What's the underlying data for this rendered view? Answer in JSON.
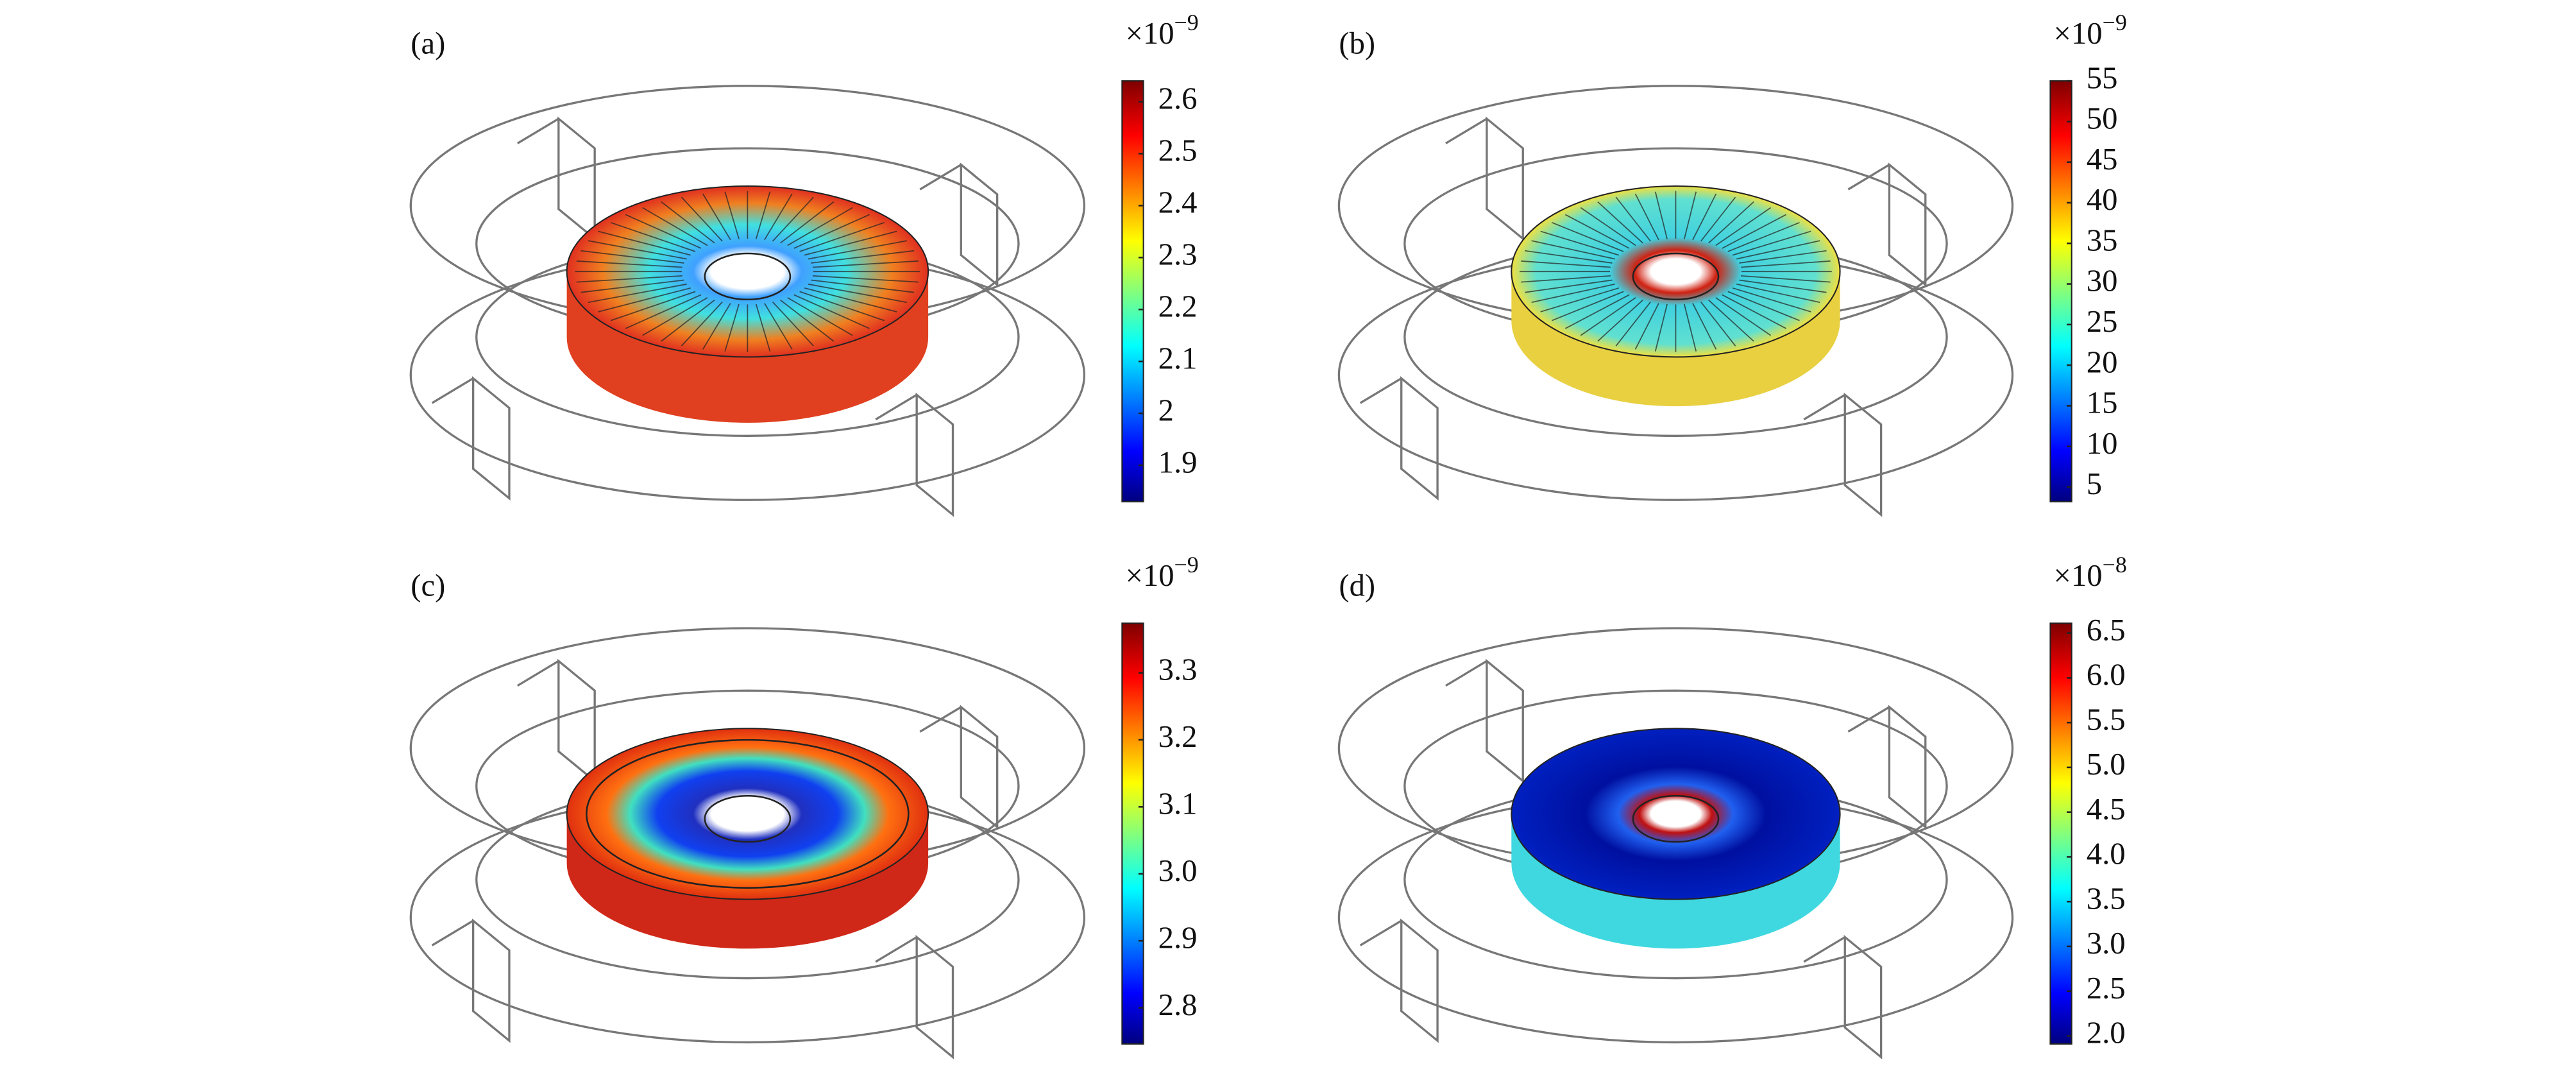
{
  "chart_data": [
    {
      "type": "colormap",
      "panel": "(a)",
      "colorbar": {
        "base": "×10",
        "exponent": "−9",
        "clim": [
          1.83,
          2.64
        ],
        "ticks": [
          1.9,
          2.0,
          2.1,
          2.2,
          2.3,
          2.4,
          2.5,
          2.6
        ]
      }
    },
    {
      "type": "colormap",
      "panel": "(b)",
      "colorbar": {
        "base": "×10",
        "exponent": "−9",
        "clim": [
          3.2,
          55
        ],
        "ticks": [
          5,
          10,
          15,
          20,
          25,
          30,
          35,
          40,
          45,
          50,
          55
        ]
      }
    },
    {
      "type": "colormap",
      "panel": "(c)",
      "colorbar": {
        "base": "×10",
        "exponent": "−9",
        "clim": [
          2.746,
          3.374
        ],
        "ticks": [
          2.8,
          2.9,
          {
            "value": 3.0,
            "label": "3.0"
          },
          3.1,
          3.2,
          3.3
        ]
      }
    },
    {
      "type": "colormap",
      "panel": "(d)",
      "colorbar": {
        "base": "×10",
        "exponent": "−8",
        "clim": [
          1.91,
          6.61
        ],
        "ticks": [
          {
            "value": 2.0,
            "label": "2.0"
          },
          2.5,
          {
            "value": 3.0,
            "label": "3.0"
          },
          3.5,
          {
            "value": 4.0,
            "label": "4.0"
          },
          4.5,
          {
            "value": 5.0,
            "label": "5.0"
          },
          5.5,
          {
            "value": 6.0,
            "label": "6.0"
          },
          6.5
        ]
      }
    }
  ]
}
